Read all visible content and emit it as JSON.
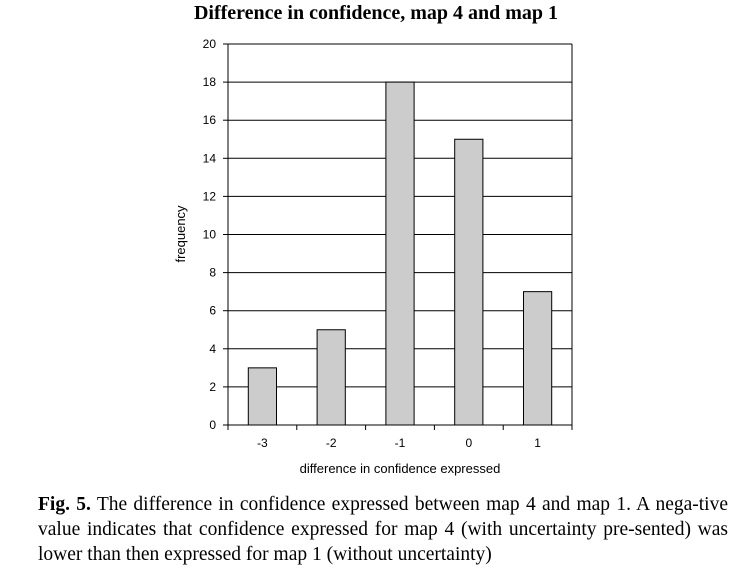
{
  "chart_data": {
    "type": "bar",
    "title": "Difference in confidence, map 4 and map 1",
    "xlabel": "difference in confidence expressed",
    "ylabel": "frequency",
    "categories": [
      "-3",
      "-2",
      "-1",
      "0",
      "1"
    ],
    "values": [
      3,
      5,
      18,
      15,
      7
    ],
    "ylim": [
      0,
      20
    ],
    "yticks": [
      0,
      2,
      4,
      6,
      8,
      10,
      12,
      14,
      16,
      18,
      20
    ],
    "grid": true,
    "bar_color": "#cccccc",
    "edge_color": "#000000"
  },
  "caption": {
    "label": "Fig. 5.",
    "text": "The difference in confidence expressed between map 4 and map 1. A nega-tive value indicates that confidence expressed for map 4 (with uncertainty pre-sented) was lower than then expressed for map 1 (without uncertainty)"
  }
}
